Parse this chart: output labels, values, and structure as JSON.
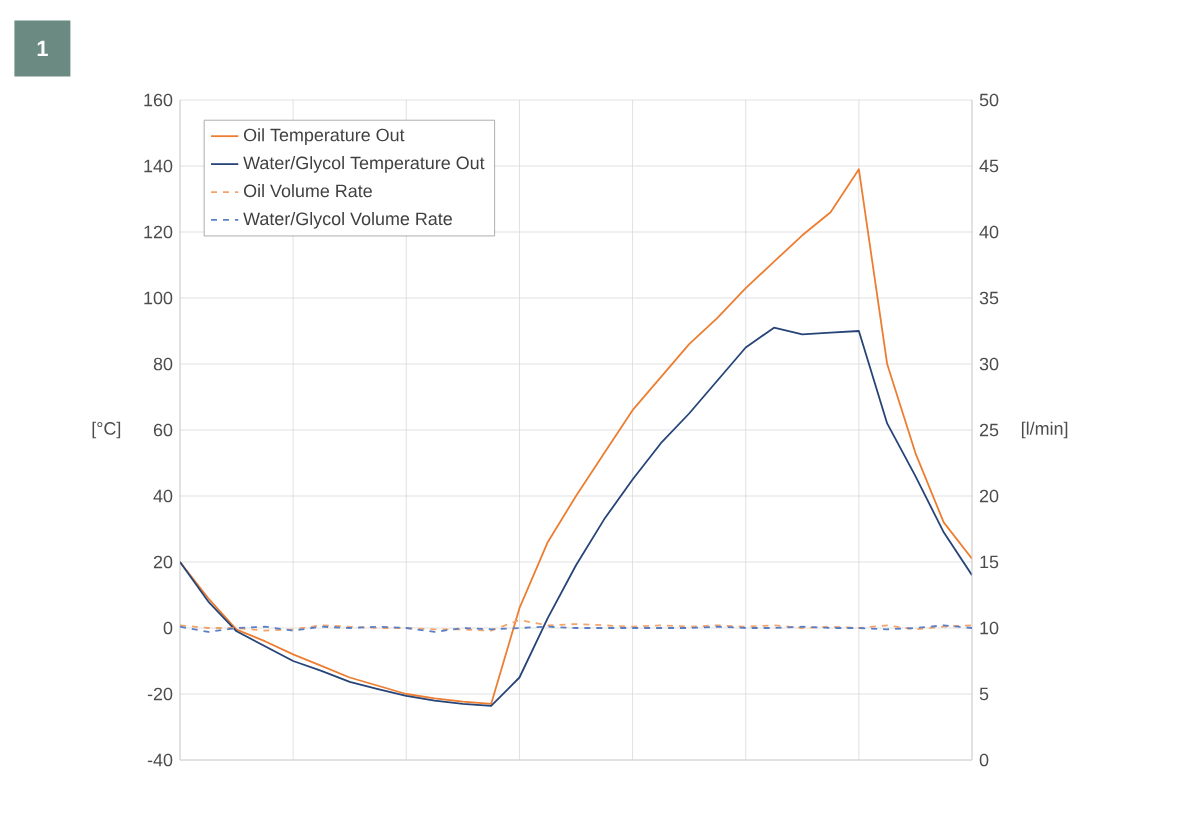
{
  "chart_data": {
    "type": "line",
    "ylabel": "[°C]",
    "y2label": "[l/min]",
    "annotations": [
      "1"
    ],
    "categories": [
      null,
      null,
      null,
      null,
      null,
      null,
      null,
      null,
      null,
      null,
      null,
      null,
      null,
      null,
      null,
      null,
      null,
      null,
      null,
      null,
      null,
      null,
      null,
      null,
      null,
      null,
      null,
      null,
      null
    ],
    "ylim": [
      -40,
      160
    ],
    "yticks": [
      -40,
      -20,
      0,
      20,
      40,
      60,
      80,
      100,
      120,
      140,
      160
    ],
    "y2lim": [
      0,
      50
    ],
    "y2ticks": [
      0,
      5,
      10,
      15,
      20,
      25,
      30,
      35,
      40,
      45,
      50
    ],
    "grid": true,
    "legend": "top left",
    "marker": "none",
    "series": [
      {
        "name": "Oil Temperature Out",
        "color": "#ed7d31",
        "line_style": "solid",
        "values": [
          20,
          9,
          -0.5,
          -4,
          -8,
          -11.5,
          -15,
          -17.5,
          -20,
          -21.3,
          -22.3,
          -23,
          6,
          26,
          40,
          53,
          66,
          76,
          86,
          94,
          103,
          111,
          119,
          126,
          139,
          80,
          53,
          32,
          21
        ]
      },
      {
        "name": "Water/Glycol Temperature Out",
        "color": "#264478",
        "line_style": "solid",
        "values": [
          20,
          8,
          -1,
          -5.5,
          -10,
          -13,
          -16.3,
          -18.5,
          -20.6,
          -22,
          -23,
          -23.6,
          -15,
          3,
          19,
          33,
          45,
          56,
          65,
          75,
          85,
          91,
          89,
          89.5,
          90,
          62,
          46,
          29,
          16
        ]
      },
      {
        "name": "Oil Volume Rate",
        "color": "#f4a46a",
        "line_style": "dashed",
        "axis": "y2",
        "values": [
          10.2,
          10,
          10,
          9.8,
          9.9,
          10.2,
          10.1,
          10,
          10,
          9.9,
          9.9,
          9.8,
          10.6,
          10.2,
          10.3,
          10.2,
          10.1,
          10.2,
          10.1,
          10.2,
          10.1,
          10.2,
          10,
          10.1,
          10,
          10.2,
          9.9,
          10.1,
          10.2
        ]
      },
      {
        "name": "Water/Glycol Volume Rate",
        "color": "#5b7fc4",
        "line_style": "dashed",
        "axis": "y2",
        "values": [
          10.1,
          9.7,
          10,
          10.1,
          9.8,
          10.1,
          10,
          10.1,
          10,
          9.7,
          10,
          9.9,
          10,
          10.1,
          10,
          10,
          10,
          10,
          10,
          10.1,
          10,
          10,
          10.1,
          10,
          10,
          9.9,
          10,
          10.2,
          10
        ]
      }
    ]
  }
}
